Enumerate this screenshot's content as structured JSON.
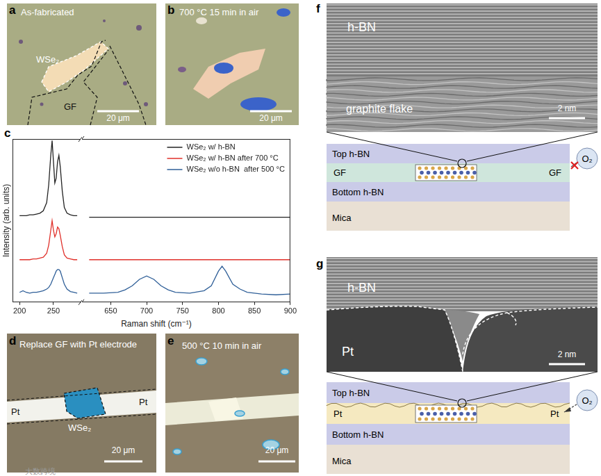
{
  "chart_data": [
    {
      "type": "line",
      "y_label": "Intensity (arb. units)",
      "x_label": "Raman shift (cm⁻¹)",
      "xlim": [
        190,
        290
      ],
      "xticks": [
        200,
        250
      ],
      "ylim": [
        0,
        10
      ],
      "tick_labels": "x",
      "grid": false,
      "x": [
        200,
        205,
        210,
        215,
        220,
        225,
        230,
        235,
        240,
        243,
        246,
        248,
        250,
        252,
        254,
        256,
        258,
        260,
        263,
        266,
        270,
        275,
        280,
        285
      ],
      "series": [
        {
          "color": "#222222",
          "values": [
            5.3,
            5.3,
            5.3,
            5.35,
            5.35,
            5.4,
            5.45,
            5.6,
            6.1,
            7.2,
            9.0,
            9.9,
            8.6,
            7.3,
            7.6,
            8.6,
            9.0,
            8.3,
            6.8,
            5.8,
            5.45,
            5.35,
            5.3,
            5.3
          ]
        },
        {
          "color": "#e0302a",
          "values": [
            2.6,
            2.6,
            2.6,
            2.6,
            2.65,
            2.65,
            2.7,
            2.75,
            3.0,
            3.5,
            4.4,
            5.0,
            4.4,
            4.0,
            4.2,
            4.6,
            4.5,
            4.1,
            3.4,
            2.9,
            2.7,
            2.65,
            2.6,
            2.6
          ]
        },
        {
          "color": "#2f5f98",
          "values": [
            0.6,
            0.7,
            0.6,
            0.55,
            0.6,
            0.6,
            0.65,
            0.7,
            0.8,
            0.9,
            1.1,
            1.3,
            1.5,
            1.7,
            1.9,
            2.0,
            2.0,
            1.9,
            1.5,
            1.1,
            0.8,
            0.65,
            0.6,
            0.55
          ]
        }
      ]
    },
    {
      "type": "line",
      "xlim": [
        610,
        900
      ],
      "xticks": [
        650,
        700,
        750,
        800,
        850,
        900
      ],
      "ylim": [
        0,
        10
      ],
      "tick_labels": "x",
      "grid": false,
      "legend": "upper right",
      "x": [
        620,
        640,
        660,
        670,
        680,
        690,
        700,
        710,
        720,
        730,
        740,
        760,
        780,
        790,
        800,
        805,
        810,
        820,
        830,
        840,
        860,
        880,
        900
      ],
      "series": [
        {
          "name": "WSe₂ w/ h-BN",
          "color": "#222222",
          "values": [
            5.2,
            5.2,
            5.2,
            5.2,
            5.2,
            5.2,
            5.2,
            5.2,
            5.2,
            5.2,
            5.2,
            5.2,
            5.2,
            5.2,
            5.2,
            5.2,
            5.2,
            5.2,
            5.2,
            5.2,
            5.2,
            5.2,
            5.2
          ]
        },
        {
          "name": "WSe₂ w/ h-BN after 700 °C",
          "color": "#e0302a",
          "values": [
            2.6,
            2.6,
            2.6,
            2.6,
            2.6,
            2.6,
            2.6,
            2.6,
            2.6,
            2.6,
            2.6,
            2.6,
            2.6,
            2.6,
            2.6,
            2.6,
            2.6,
            2.6,
            2.6,
            2.6,
            2.6,
            2.6,
            2.6
          ]
        },
        {
          "name": "WSe₂ w/o h-BN  after 500 °C",
          "color": "#2f5f98",
          "values": [
            0.55,
            0.55,
            0.6,
            0.75,
            1.0,
            1.4,
            1.6,
            1.4,
            1.0,
            0.75,
            0.6,
            0.55,
            0.7,
            1.0,
            1.9,
            2.2,
            1.9,
            1.1,
            0.8,
            0.6,
            0.5,
            0.45,
            0.5
          ]
        }
      ]
    }
  ],
  "panels": {
    "a": {
      "label": "a",
      "title": "As-fabricated",
      "flake": "WSe₂",
      "electrode": "GF",
      "scale_bar": "20 μm"
    },
    "b": {
      "label": "b",
      "title": "700 °C 15 min in air",
      "scale_bar": "20 μm"
    },
    "c": {
      "label": "c"
    },
    "d": {
      "label": "d",
      "title": "Replace GF with Pt electrode",
      "electrodes": [
        "Pt",
        "Pt"
      ],
      "flake": "WSe₂",
      "scale_bar": "20 μm"
    },
    "e": {
      "label": "e",
      "title": "500 °C 10 min in air",
      "scale_bar": "20 μm"
    },
    "f": {
      "label": "f",
      "tem": {
        "top": "h-BN",
        "bottom": "graphite flake",
        "scale_bar": "2 nm"
      },
      "schematic": {
        "top": "Top h-BN",
        "sides": [
          "GF",
          "GF"
        ],
        "bottom": "Bottom h-BN",
        "substrate": "Mica",
        "gas": "O₂"
      }
    },
    "g": {
      "label": "g",
      "tem": {
        "top": "h-BN",
        "bottom": "Pt",
        "scale_bar": "2 nm"
      },
      "schematic": {
        "top": "Top h-BN",
        "sides": [
          "Pt",
          "Pt"
        ],
        "bottom": "Bottom h-BN",
        "substrate": "Mica",
        "gas": "O₂"
      }
    }
  },
  "watermark": "大数跨境"
}
